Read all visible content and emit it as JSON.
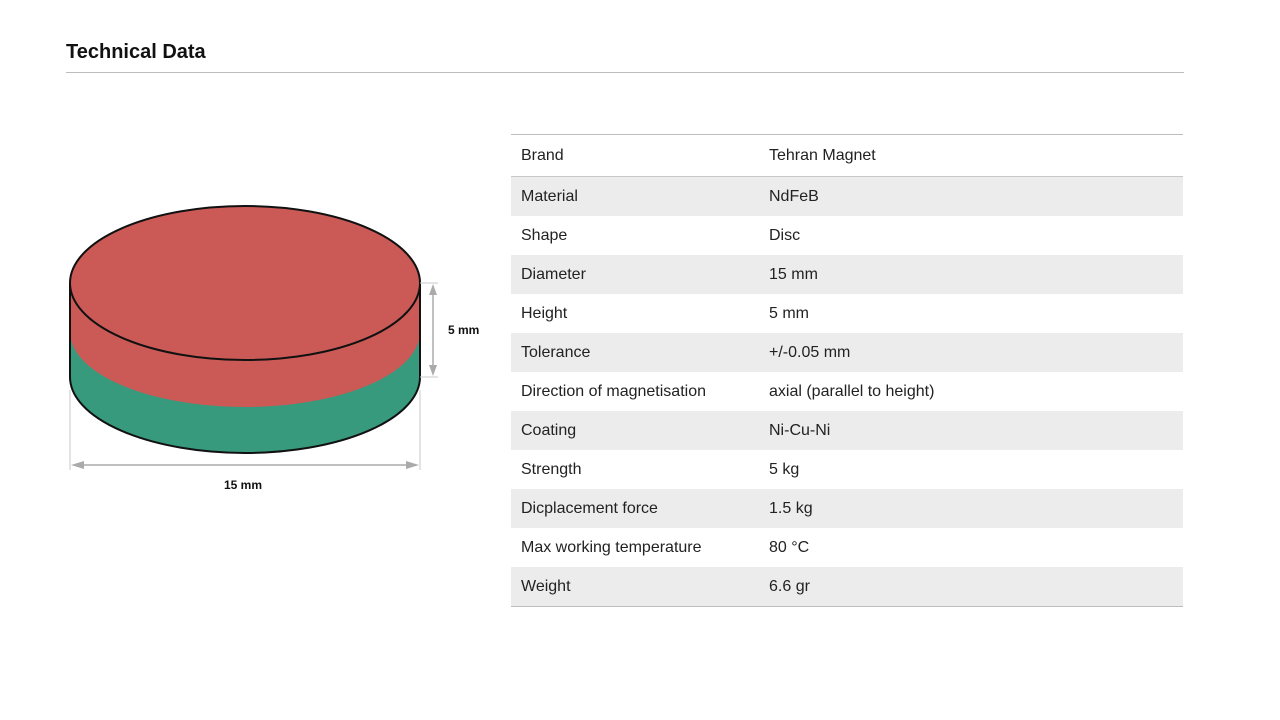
{
  "title": "Technical Data",
  "figure": {
    "height_label": "5 mm",
    "diameter_label": "15 mm",
    "colors": {
      "north": "#cb5a57",
      "south": "#379a7d"
    }
  },
  "specs": [
    {
      "label": "Brand",
      "value": "Tehran Magnet"
    },
    {
      "label": "Material",
      "value": "NdFeB"
    },
    {
      "label": "Shape",
      "value": "Disc"
    },
    {
      "label": "Diameter",
      "value": "15 mm"
    },
    {
      "label": "Height",
      "value": "5 mm"
    },
    {
      "label": "Tolerance",
      "value": "+/-0.05 mm"
    },
    {
      "label": "Direction of magnetisation",
      "value": "axial (parallel to height)"
    },
    {
      "label": "Coating",
      "value": "Ni-Cu-Ni"
    },
    {
      "label": "Strength",
      "value": "5 kg"
    },
    {
      "label": "Dicplacement force",
      "value": "1.5 kg"
    },
    {
      "label": "Max working temperature",
      "value": "80 °C"
    },
    {
      "label": "Weight",
      "value": "6.6 gr"
    }
  ]
}
